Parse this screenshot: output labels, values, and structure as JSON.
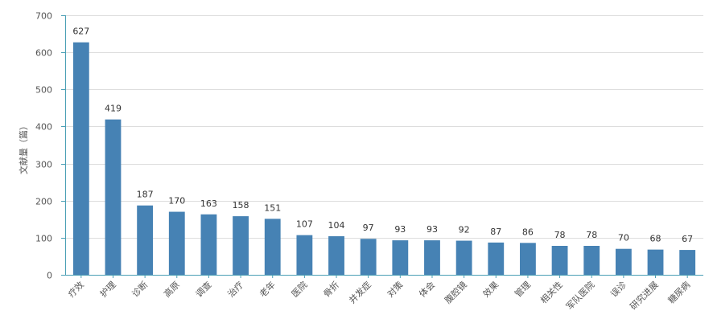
{
  "chart_data": {
    "type": "bar",
    "ylabel": "文献量（篇）",
    "xlabel": "",
    "ylim": [
      0,
      700
    ],
    "yticks": [
      0,
      100,
      200,
      300,
      400,
      500,
      600,
      700
    ],
    "grid": true,
    "categories": [
      "疗效",
      "护理",
      "诊断",
      "高原",
      "调查",
      "治疗",
      "老年",
      "医院",
      "骨折",
      "并发症",
      "对策",
      "体会",
      "腹腔镜",
      "效果",
      "管理",
      "相关性",
      "军队医院",
      "误诊",
      "研究进展",
      "糖尿病"
    ],
    "values": [
      627,
      419,
      187,
      170,
      163,
      158,
      151,
      107,
      104,
      97,
      93,
      93,
      92,
      87,
      86,
      78,
      78,
      70,
      68,
      67
    ],
    "bar_color": "#4682B4",
    "axis_color": "#4a9fb5",
    "grid_color": "#dddddd"
  }
}
